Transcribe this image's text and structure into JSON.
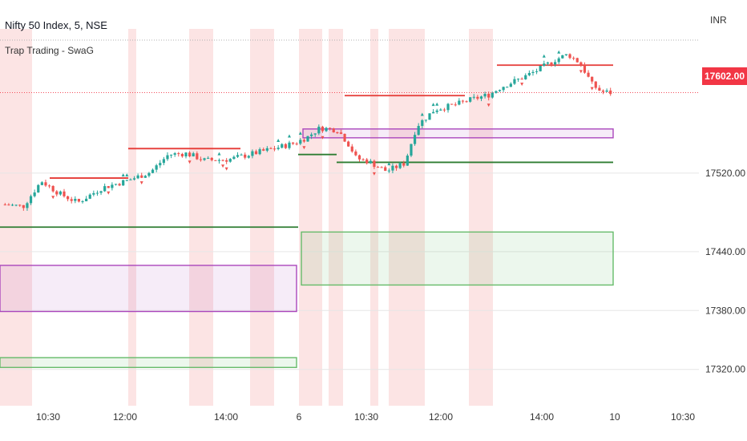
{
  "header": {
    "symbol": "Nifty 50 Index, 5, NSE",
    "indicator": "Trap Trading - SwaG",
    "currency": "INR"
  },
  "last_price_label": "17602.00",
  "colors": {
    "up": "#26a69a",
    "down": "#ef5350",
    "shade": "#fce4e4",
    "resistance": "#e53935",
    "support": "#2e7d32",
    "zone_purple": "#ab47bc",
    "zone_green": "#66bb6a",
    "last_price": "#f23645"
  },
  "chart_data": {
    "type": "candlestick",
    "ylim": [
      17283,
      17667
    ],
    "y_ticks": [
      17320.0,
      17380.0,
      17440.0,
      17520.0
    ],
    "x_ticks": [
      "10:30",
      "12:00",
      "14:00",
      "6",
      "10:30",
      "12:00",
      "14:00",
      "10",
      "10:30"
    ],
    "last_price": 17602.0,
    "price_path": [
      [
        0,
        17488
      ],
      [
        0.03,
        17486
      ],
      [
        0.06,
        17512
      ],
      [
        0.09,
        17499
      ],
      [
        0.12,
        17490
      ],
      [
        0.16,
        17505
      ],
      [
        0.2,
        17512
      ],
      [
        0.24,
        17521
      ],
      [
        0.27,
        17539
      ],
      [
        0.3,
        17540
      ],
      [
        0.33,
        17533
      ],
      [
        0.37,
        17534
      ],
      [
        0.41,
        17540
      ],
      [
        0.45,
        17546
      ],
      [
        0.48,
        17551
      ],
      [
        0.5,
        17557
      ],
      [
        0.52,
        17566
      ],
      [
        0.55,
        17564
      ],
      [
        0.57,
        17547
      ],
      [
        0.58,
        17535
      ],
      [
        0.6,
        17532
      ],
      [
        0.63,
        17522
      ],
      [
        0.66,
        17530
      ],
      [
        0.68,
        17568
      ],
      [
        0.71,
        17585
      ],
      [
        0.74,
        17589
      ],
      [
        0.77,
        17595
      ],
      [
        0.8,
        17600
      ],
      [
        0.82,
        17608
      ],
      [
        0.85,
        17616
      ],
      [
        0.88,
        17625
      ],
      [
        0.91,
        17636
      ],
      [
        0.93,
        17641
      ],
      [
        0.95,
        17632
      ],
      [
        0.97,
        17610
      ],
      [
        0.985,
        17603
      ],
      [
        1.0,
        17602
      ]
    ],
    "resistance_levels": [
      17515,
      17545,
      17599,
      17630
    ],
    "support_levels": [
      17465,
      17539,
      17531
    ],
    "zones": [
      {
        "kind": "purple",
        "top": 17426,
        "bottom": 17379
      },
      {
        "kind": "green",
        "top": 17460,
        "bottom": 17406
      },
      {
        "kind": "purple",
        "top": 17565,
        "bottom": 17556
      },
      {
        "kind": "green",
        "top": 17332,
        "bottom": 17322
      }
    ]
  }
}
